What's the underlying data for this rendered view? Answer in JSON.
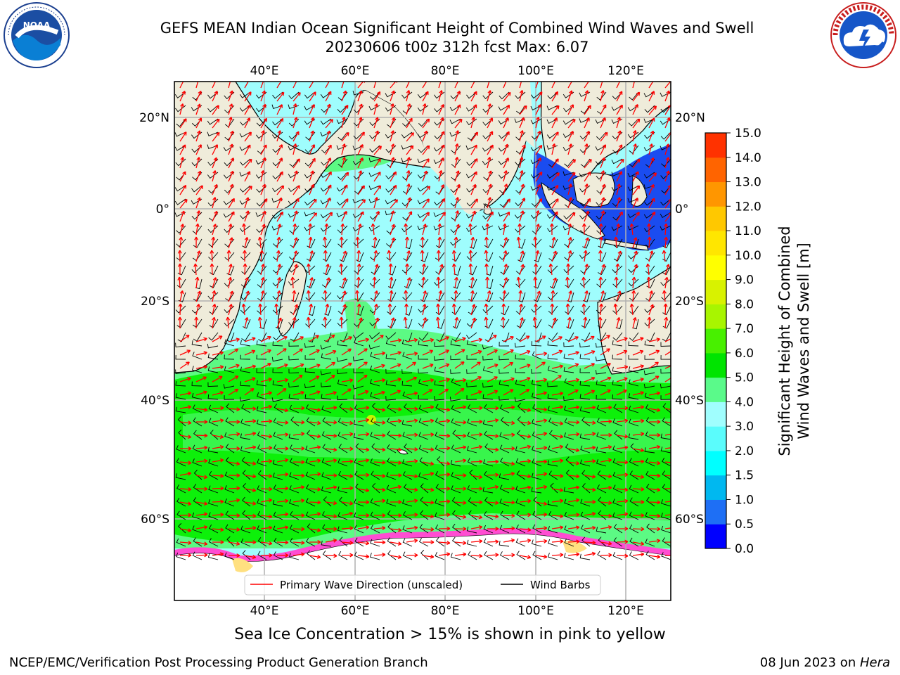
{
  "title": {
    "line1": "GEFS MEAN Indian Ocean Significant Height of Combined Wind Waves and Swell",
    "line2": "20230606 t00z 312h fcst   Max: 6.07"
  },
  "logos": {
    "left": {
      "icon": "noaa-logo",
      "text": "NOAA"
    },
    "right": {
      "icon": "nws-logo",
      "text": "NATIONAL WEATHER SERVICE"
    }
  },
  "map": {
    "lon_ticks": [
      "40°E",
      "60°E",
      "80°E",
      "100°E",
      "120°E"
    ],
    "lat_ticks": [
      "20°N",
      "0°",
      "20°S",
      "40°S",
      "60°S"
    ],
    "extent": {
      "lon": [
        20,
        130
      ],
      "lat": [
        -72,
        28
      ]
    },
    "colors": {
      "land": "#efecda",
      "ocean_light": "#9ffdfd",
      "ocean_green_light": "#5cfa84",
      "ocean_green": "#0df00a",
      "indonesia_blue": "#1a4cf0",
      "wave_arrow": "#ff0000",
      "wind_barb": "#000000",
      "sea_ice_pink": "#ff4dd2",
      "sea_ice_yellow": "#ffe080"
    }
  },
  "colorbar": {
    "label_line1": "Significant Height of Combined",
    "label_line2": "Wind Waves and Swell [m]",
    "ticks": [
      "0.0",
      "0.5",
      "1.0",
      "1.5",
      "2.0",
      "3.0",
      "4.0",
      "5.0",
      "6.0",
      "7.0",
      "8.0",
      "9.0",
      "10.0",
      "11.0",
      "12.0",
      "13.0",
      "14.0",
      "15.0"
    ],
    "colors": [
      "#0000ff",
      "#1e6ff5",
      "#00b8f0",
      "#00ffff",
      "#5afcfc",
      "#a0fefe",
      "#5afa8a",
      "#00e400",
      "#48f000",
      "#a8f500",
      "#d8f200",
      "#ffff00",
      "#ffe600",
      "#ffc800",
      "#ff9600",
      "#ff6400",
      "#ff3200",
      "#ff0000"
    ]
  },
  "legend": {
    "wave_label": "Primary Wave Direction (unscaled)",
    "barb_label": "Wind Barbs"
  },
  "note": "Sea Ice Concentration > 15% is shown in pink to yellow",
  "footer": {
    "left": "NCEP/EMC/Verification Post Processing Product Generation Branch",
    "right_date": "08 Jun 2023 on ",
    "right_host": "Hera"
  }
}
